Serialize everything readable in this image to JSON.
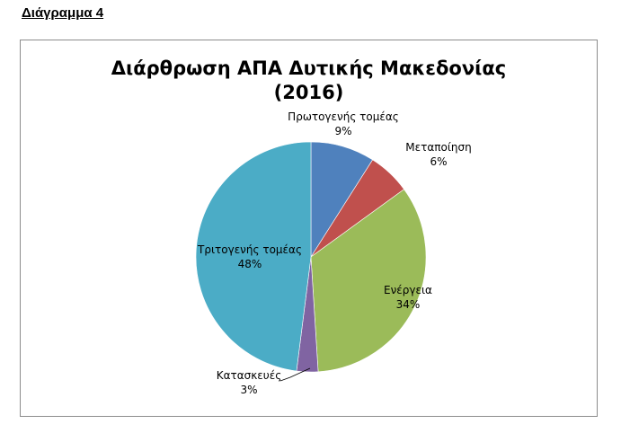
{
  "heading": "Διάγραμμα 4",
  "chart_data": {
    "type": "pie",
    "title_line1": "Διάρθρωση ΑΠΑ Δυτικής Μακεδονίας",
    "title_line2": "(2016)",
    "slices": [
      {
        "name": "Πρωτογενής τομέας",
        "value": 9,
        "label": "9%",
        "color": "#4f81bd"
      },
      {
        "name": "Μεταποίηση",
        "value": 6,
        "label": "6%",
        "color": "#c0504d"
      },
      {
        "name": "Ενέργεια",
        "value": 34,
        "label": "34%",
        "color": "#9bbb59"
      },
      {
        "name": "Κατασκευές",
        "value": 3,
        "label": "3%",
        "color": "#8064a2"
      },
      {
        "name": "Τριτογενής τομέας",
        "value": 48,
        "label": "48%",
        "color": "#4bacc6"
      }
    ],
    "legend": "none",
    "grid": false
  }
}
